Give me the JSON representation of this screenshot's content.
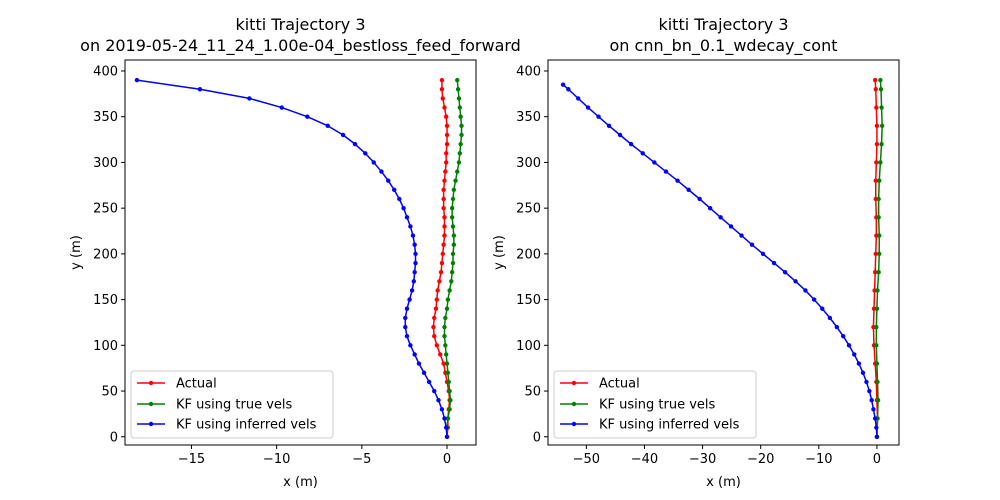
{
  "chart_data": [
    {
      "type": "line",
      "title_line1": "kitti Trajectory 3",
      "title_line2": "on 2019-05-24_11_24_1.00e-04_bestloss_feed_forward",
      "xlabel": "x (m)",
      "ylabel": "y (m)",
      "xlim": [
        -18.9,
        1.7
      ],
      "ylim": [
        -9,
        412
      ],
      "xticks": [
        -15,
        -10,
        -5,
        0
      ],
      "yticks": [
        0,
        50,
        100,
        150,
        200,
        250,
        300,
        350,
        400
      ],
      "legend_position": "lower-left",
      "series": [
        {
          "name": "Actual",
          "color": "#ff0000",
          "points": [
            [
              0.0,
              0
            ],
            [
              0.05,
              10
            ],
            [
              0.05,
              20
            ],
            [
              0.1,
              30
            ],
            [
              0.15,
              40
            ],
            [
              0.1,
              50
            ],
            [
              0.0,
              60
            ],
            [
              -0.1,
              70
            ],
            [
              -0.2,
              80
            ],
            [
              -0.4,
              90
            ],
            [
              -0.6,
              100
            ],
            [
              -0.75,
              110
            ],
            [
              -0.8,
              120
            ],
            [
              -0.75,
              130
            ],
            [
              -0.65,
              140
            ],
            [
              -0.6,
              150
            ],
            [
              -0.55,
              160
            ],
            [
              -0.45,
              170
            ],
            [
              -0.35,
              180
            ],
            [
              -0.3,
              190
            ],
            [
              -0.25,
              200
            ],
            [
              -0.2,
              210
            ],
            [
              -0.15,
              220
            ],
            [
              -0.15,
              230
            ],
            [
              -0.15,
              240
            ],
            [
              -0.2,
              250
            ],
            [
              -0.2,
              260
            ],
            [
              -0.2,
              270
            ],
            [
              -0.15,
              280
            ],
            [
              -0.1,
              290
            ],
            [
              -0.05,
              300
            ],
            [
              -0.05,
              310
            ],
            [
              0.0,
              320
            ],
            [
              0.0,
              330
            ],
            [
              0.0,
              340
            ],
            [
              -0.05,
              350
            ],
            [
              -0.15,
              360
            ],
            [
              -0.25,
              370
            ],
            [
              -0.3,
              380
            ],
            [
              -0.3,
              390
            ]
          ]
        },
        {
          "name": "KF using true vels",
          "color": "#008000",
          "points": [
            [
              0.0,
              0
            ],
            [
              0.0,
              10
            ],
            [
              0.05,
              20
            ],
            [
              0.15,
              30
            ],
            [
              0.2,
              40
            ],
            [
              0.15,
              50
            ],
            [
              0.1,
              60
            ],
            [
              0.05,
              70
            ],
            [
              0.0,
              80
            ],
            [
              -0.05,
              90
            ],
            [
              -0.1,
              100
            ],
            [
              -0.15,
              110
            ],
            [
              -0.15,
              120
            ],
            [
              -0.1,
              130
            ],
            [
              0.0,
              140
            ],
            [
              0.05,
              150
            ],
            [
              0.15,
              160
            ],
            [
              0.25,
              170
            ],
            [
              0.3,
              180
            ],
            [
              0.35,
              190
            ],
            [
              0.35,
              200
            ],
            [
              0.4,
              210
            ],
            [
              0.4,
              220
            ],
            [
              0.35,
              230
            ],
            [
              0.3,
              240
            ],
            [
              0.3,
              250
            ],
            [
              0.35,
              260
            ],
            [
              0.4,
              270
            ],
            [
              0.5,
              280
            ],
            [
              0.6,
              290
            ],
            [
              0.7,
              300
            ],
            [
              0.75,
              310
            ],
            [
              0.8,
              320
            ],
            [
              0.85,
              330
            ],
            [
              0.85,
              340
            ],
            [
              0.8,
              350
            ],
            [
              0.75,
              360
            ],
            [
              0.7,
              370
            ],
            [
              0.65,
              380
            ],
            [
              0.6,
              390
            ]
          ]
        },
        {
          "name": "KF using inferred vels",
          "color": "#0000ff",
          "points": [
            [
              0.0,
              0
            ],
            [
              -0.05,
              10
            ],
            [
              -0.15,
              20
            ],
            [
              -0.3,
              30
            ],
            [
              -0.5,
              40
            ],
            [
              -0.75,
              50
            ],
            [
              -1.05,
              60
            ],
            [
              -1.35,
              70
            ],
            [
              -1.65,
              80
            ],
            [
              -1.9,
              90
            ],
            [
              -2.15,
              100
            ],
            [
              -2.35,
              110
            ],
            [
              -2.45,
              120
            ],
            [
              -2.45,
              130
            ],
            [
              -2.35,
              140
            ],
            [
              -2.2,
              150
            ],
            [
              -2.05,
              160
            ],
            [
              -1.95,
              170
            ],
            [
              -1.9,
              180
            ],
            [
              -1.85,
              190
            ],
            [
              -1.85,
              200
            ],
            [
              -1.9,
              210
            ],
            [
              -2.0,
              220
            ],
            [
              -2.15,
              230
            ],
            [
              -2.35,
              240
            ],
            [
              -2.55,
              250
            ],
            [
              -2.8,
              260
            ],
            [
              -3.1,
              270
            ],
            [
              -3.45,
              280
            ],
            [
              -3.85,
              290
            ],
            [
              -4.3,
              300
            ],
            [
              -4.8,
              310
            ],
            [
              -5.4,
              320
            ],
            [
              -6.1,
              330
            ],
            [
              -7.0,
              340
            ],
            [
              -8.2,
              350
            ],
            [
              -9.7,
              360
            ],
            [
              -11.6,
              370
            ],
            [
              -14.5,
              380
            ],
            [
              -18.2,
              390
            ]
          ]
        }
      ]
    },
    {
      "type": "line",
      "title_line1": "kitti Trajectory 3",
      "title_line2": "on cnn_bn_0.1_wdecay_cont",
      "xlabel": "x (m)",
      "ylabel": "y (m)",
      "xlim": [
        -56.6,
        3.8
      ],
      "ylim": [
        -9,
        412
      ],
      "xticks": [
        -50,
        -40,
        -30,
        -20,
        -10,
        0
      ],
      "yticks": [
        0,
        50,
        100,
        150,
        200,
        250,
        300,
        350,
        400
      ],
      "legend_position": "lower-left",
      "series": [
        {
          "name": "Actual",
          "color": "#ff0000",
          "points": [
            [
              0.0,
              0
            ],
            [
              0.1,
              20
            ],
            [
              0.0,
              40
            ],
            [
              -0.1,
              60
            ],
            [
              -0.3,
              80
            ],
            [
              -0.5,
              100
            ],
            [
              -0.6,
              120
            ],
            [
              -0.5,
              140
            ],
            [
              -0.4,
              160
            ],
            [
              -0.3,
              180
            ],
            [
              -0.2,
              200
            ],
            [
              -0.1,
              220
            ],
            [
              -0.1,
              240
            ],
            [
              -0.2,
              260
            ],
            [
              -0.2,
              280
            ],
            [
              -0.1,
              300
            ],
            [
              0.0,
              320
            ],
            [
              0.0,
              340
            ],
            [
              -0.1,
              360
            ],
            [
              -0.2,
              380
            ],
            [
              -0.3,
              390
            ]
          ]
        },
        {
          "name": "KF using true vels",
          "color": "#008000",
          "points": [
            [
              0.0,
              0
            ],
            [
              0.1,
              20
            ],
            [
              0.2,
              40
            ],
            [
              0.1,
              60
            ],
            [
              0.0,
              80
            ],
            [
              -0.1,
              100
            ],
            [
              -0.1,
              120
            ],
            [
              0.0,
              140
            ],
            [
              0.1,
              160
            ],
            [
              0.3,
              180
            ],
            [
              0.4,
              200
            ],
            [
              0.4,
              220
            ],
            [
              0.3,
              240
            ],
            [
              0.3,
              260
            ],
            [
              0.4,
              280
            ],
            [
              0.6,
              300
            ],
            [
              0.8,
              320
            ],
            [
              0.9,
              340
            ],
            [
              0.8,
              360
            ],
            [
              0.7,
              380
            ],
            [
              0.6,
              390
            ]
          ]
        },
        {
          "name": "KF using inferred vels",
          "color": "#0000ff",
          "points": [
            [
              0.0,
              0
            ],
            [
              -0.1,
              10
            ],
            [
              -0.3,
              20
            ],
            [
              -0.6,
              30
            ],
            [
              -0.9,
              40
            ],
            [
              -1.3,
              50
            ],
            [
              -1.8,
              60
            ],
            [
              -2.4,
              70
            ],
            [
              -3.1,
              80
            ],
            [
              -3.9,
              90
            ],
            [
              -4.8,
              100
            ],
            [
              -5.8,
              110
            ],
            [
              -6.9,
              120
            ],
            [
              -8.1,
              130
            ],
            [
              -9.4,
              140
            ],
            [
              -10.8,
              150
            ],
            [
              -12.3,
              160
            ],
            [
              -14.0,
              170
            ],
            [
              -15.8,
              180
            ],
            [
              -17.7,
              190
            ],
            [
              -19.6,
              200
            ],
            [
              -21.5,
              210
            ],
            [
              -23.3,
              220
            ],
            [
              -25.1,
              230
            ],
            [
              -26.9,
              240
            ],
            [
              -28.7,
              250
            ],
            [
              -30.5,
              260
            ],
            [
              -32.4,
              270
            ],
            [
              -34.3,
              280
            ],
            [
              -36.3,
              290
            ],
            [
              -38.3,
              300
            ],
            [
              -40.3,
              310
            ],
            [
              -42.3,
              320
            ],
            [
              -44.2,
              330
            ],
            [
              -46.1,
              340
            ],
            [
              -47.9,
              350
            ],
            [
              -49.7,
              360
            ],
            [
              -51.4,
              370
            ],
            [
              -53.1,
              380
            ],
            [
              -54.0,
              385
            ]
          ]
        }
      ]
    }
  ]
}
